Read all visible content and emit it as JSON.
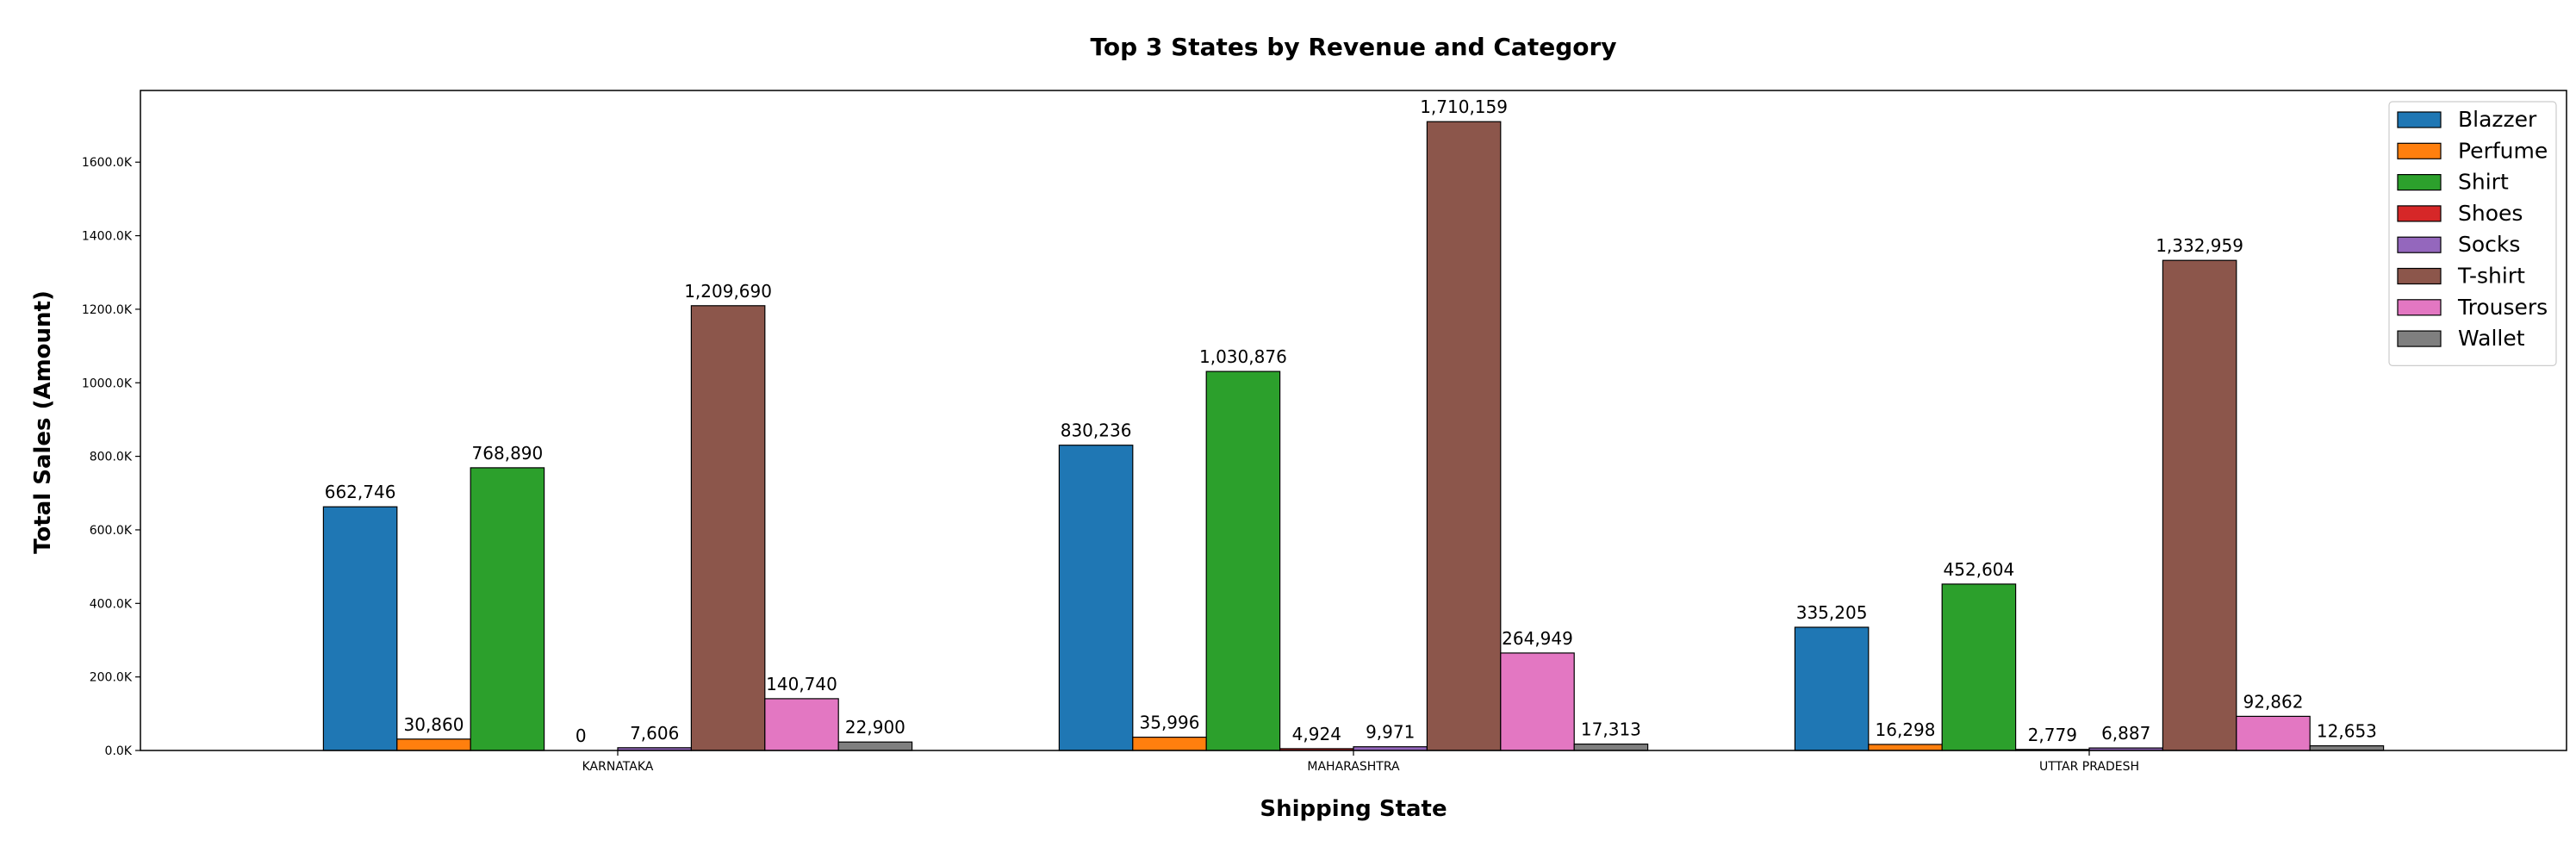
{
  "chart_data": {
    "type": "bar",
    "title": "Top 3 States by Revenue and Category",
    "xlabel": "Shipping State",
    "ylabel": "Total Sales (Amount)",
    "categories": [
      "KARNATAKA",
      "MAHARASHTRA",
      "UTTAR PRADESH"
    ],
    "ylim": [
      0,
      1795000
    ],
    "yticks": [
      0,
      200000,
      400000,
      600000,
      800000,
      1000000,
      1200000,
      1400000,
      1600000
    ],
    "ytick_labels": [
      "0.0K",
      "200.0K",
      "400.0K",
      "600.0K",
      "800.0K",
      "1000.0K",
      "1200.0K",
      "1400.0K",
      "1600.0K"
    ],
    "legend_position": "top-right",
    "grid": false,
    "series": [
      {
        "name": "Blazzer",
        "color": "#1f77b4",
        "values": [
          662746,
          830236,
          335205
        ],
        "labels": [
          "662,746",
          "830,236",
          "335,205"
        ]
      },
      {
        "name": "Perfume",
        "color": "#ff7f0e",
        "values": [
          30860,
          35996,
          16298
        ],
        "labels": [
          "30,860",
          "35,996",
          "16,298"
        ]
      },
      {
        "name": "Shirt",
        "color": "#2ca02c",
        "values": [
          768890,
          1030876,
          452604
        ],
        "labels": [
          "768,890",
          "1,030,876",
          "452,604"
        ]
      },
      {
        "name": "Shoes",
        "color": "#d62728",
        "values": [
          0,
          4924,
          2779
        ],
        "labels": [
          "0",
          "4,924",
          "2,779"
        ]
      },
      {
        "name": "Socks",
        "color": "#9467bd",
        "values": [
          7606,
          9971,
          6887
        ],
        "labels": [
          "7,606",
          "9,971",
          "6,887"
        ]
      },
      {
        "name": "T-shirt",
        "color": "#8c564b",
        "values": [
          1209690,
          1710159,
          1332959
        ],
        "labels": [
          "1,209,690",
          "1,710,159",
          "1,332,959"
        ]
      },
      {
        "name": "Trousers",
        "color": "#e377c2",
        "values": [
          140740,
          264949,
          92862
        ],
        "labels": [
          "140,740",
          "264,949",
          "92,862"
        ]
      },
      {
        "name": "Wallet",
        "color": "#7f7f7f",
        "values": [
          22900,
          17313,
          12653
        ],
        "labels": [
          "22,900",
          "17,313",
          "12,653"
        ]
      }
    ]
  }
}
